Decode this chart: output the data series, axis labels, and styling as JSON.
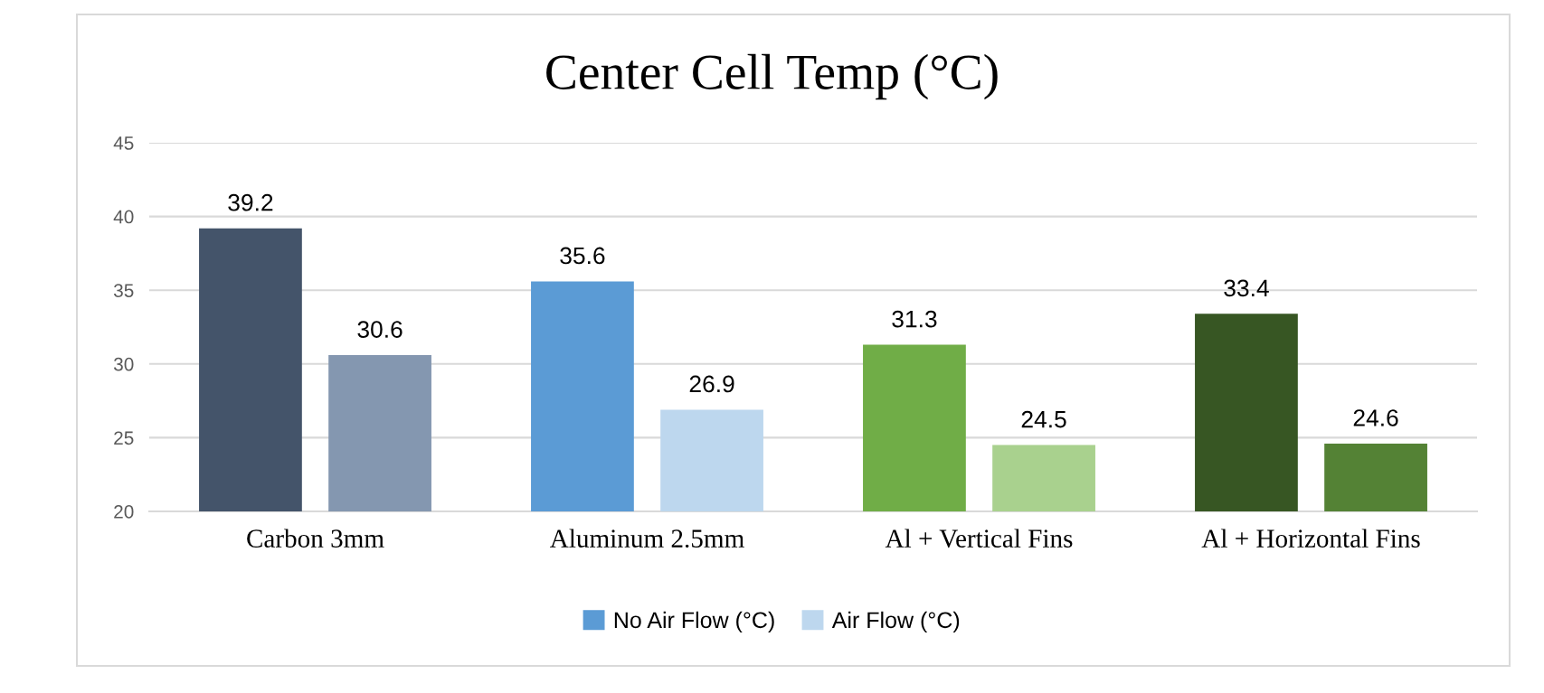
{
  "chart_data": {
    "type": "bar",
    "title": "Center Cell Temp (°C)",
    "categories": [
      "Carbon 3mm",
      "Aluminum 2.5mm",
      "Al + Vertical Fins",
      "Al + Horizontal Fins"
    ],
    "series": [
      {
        "name": "No Air Flow (°C)",
        "color": "#5b9bd5",
        "colors": [
          "#44546a",
          "#5b9bd5",
          "#70ad47",
          "#375623"
        ],
        "values": [
          39.2,
          35.6,
          31.3,
          33.4
        ]
      },
      {
        "name": "Air Flow (°C)",
        "color": "#bdd7ee",
        "colors": [
          "#8497b0",
          "#bdd7ee",
          "#a9d18e",
          "#548235"
        ],
        "values": [
          30.6,
          26.9,
          24.5,
          24.6
        ]
      }
    ],
    "ylim": [
      20,
      45
    ],
    "yticks": [
      20,
      25,
      30,
      35,
      40,
      45
    ],
    "grid": "y",
    "legend": "bottom",
    "data_labels": true
  }
}
